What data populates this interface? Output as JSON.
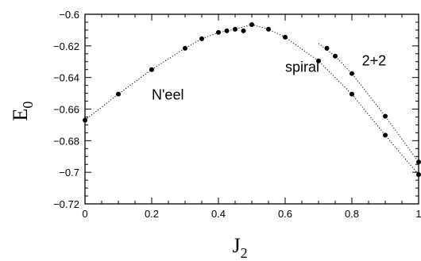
{
  "chart_data": {
    "type": "scatter",
    "xlabel": "J",
    "xlabel_sub": "2",
    "ylabel": "E",
    "ylabel_sub": "0",
    "xlim": [
      0,
      1
    ],
    "ylim": [
      -0.72,
      -0.6
    ],
    "x_ticks": [
      0,
      0.2,
      0.4,
      0.6,
      0.8,
      1
    ],
    "x_tick_labels": [
      "0",
      "0.2",
      "0.4",
      "0.6",
      "0.8",
      "1"
    ],
    "y_ticks": [
      -0.72,
      -0.7,
      -0.68,
      -0.66,
      -0.64,
      -0.62,
      -0.6
    ],
    "y_tick_labels": [
      "−0.72",
      "−0.7",
      "−0.68",
      "−0.66",
      "−0.64",
      "−0.62",
      "−0.6"
    ],
    "grid": false,
    "annotations": [
      {
        "text": "N'eel",
        "x": 0.2,
        "y": -0.654
      },
      {
        "text": "spiral",
        "x": 0.6,
        "y": -0.6365
      },
      {
        "text": "2+2",
        "x": 0.83,
        "y": -0.6325
      }
    ],
    "series": [
      {
        "marker": "dot",
        "x": [
          0,
          0.1,
          0.2,
          0.3,
          0.35,
          0.4,
          0.425,
          0.45,
          0.475,
          0.5,
          0.55,
          0.6,
          0.7,
          0.8,
          0.9,
          1.0
        ],
        "y": [
          -0.667,
          -0.6505,
          -0.635,
          -0.6215,
          -0.6155,
          -0.6115,
          -0.6105,
          -0.6095,
          -0.6105,
          -0.6065,
          -0.6095,
          -0.6145,
          -0.6295,
          -0.6505,
          -0.6765,
          -0.7015
        ]
      },
      {
        "marker": "dot",
        "x": [
          0.725,
          0.75,
          0.8,
          0.9,
          1.0
        ],
        "y": [
          -0.6215,
          -0.6265,
          -0.6375,
          -0.6645,
          -0.6935
        ]
      }
    ],
    "fit_curves": [
      {
        "style": "dotted",
        "x": [
          0,
          0.1,
          0.2,
          0.3,
          0.35,
          0.4,
          0.45,
          0.5,
          0.55,
          0.6,
          0.7,
          0.8,
          0.9,
          1.0
        ],
        "y": [
          -0.667,
          -0.6505,
          -0.635,
          -0.6215,
          -0.6155,
          -0.6115,
          -0.6095,
          -0.6065,
          -0.6095,
          -0.6145,
          -0.6295,
          -0.6505,
          -0.6765,
          -0.7015
        ]
      },
      {
        "style": "dotted",
        "x": [
          0.7,
          0.75,
          0.8,
          0.9,
          1.0
        ],
        "y": [
          -0.6185,
          -0.6265,
          -0.6375,
          -0.6645,
          -0.6935
        ]
      }
    ]
  }
}
